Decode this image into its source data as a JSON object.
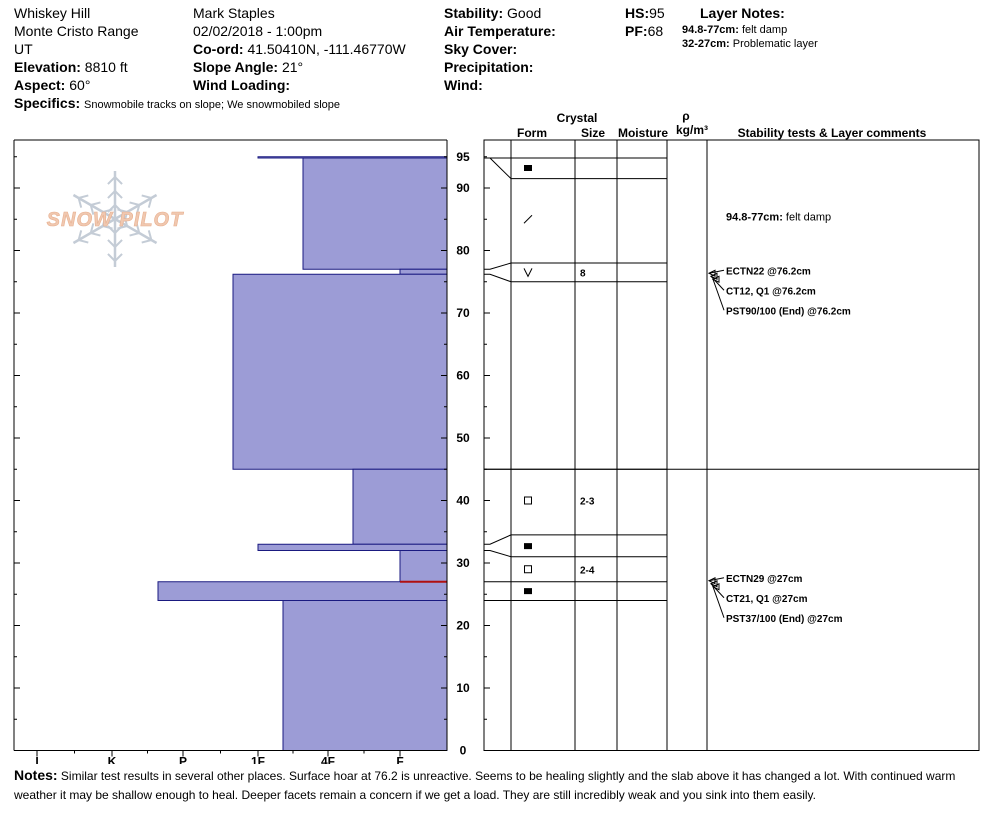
{
  "header": {
    "location": "Whiskey Hill",
    "range": "Monte Cristo Range",
    "state": "UT",
    "elevation_label": "Elevation:",
    "elevation_value": "8810 ft",
    "aspect_label": "Aspect:",
    "aspect_value": "60°",
    "specifics_label": "Specifics:",
    "specifics_value": "Snowmobile tracks on slope; We snowmobiled slope",
    "observer": "Mark Staples",
    "datetime": "02/02/2018 - 1:00pm",
    "coord_label": "Co-ord:",
    "coord_value": "41.50410N, -111.46770W",
    "slope_label": "Slope Angle:",
    "slope_value": "21°",
    "wind_loading_label": "Wind Loading:",
    "wind_loading_value": "",
    "stability_label": "Stability:",
    "stability_value": "Good",
    "air_temp_label": "Air Temperature:",
    "air_temp_value": "",
    "sky_cover_label": "Sky Cover:",
    "sky_cover_value": "",
    "precip_label": "Precipitation:",
    "precip_value": "",
    "wind_label": "Wind:",
    "wind_value": "",
    "hs_label": "HS:",
    "hs_value": "95",
    "pf_label": "PF:",
    "pf_value": "68",
    "layer_notes_label": "Layer Notes:",
    "layer_notes": [
      {
        "range": "94.8-77cm:",
        "text": "felt damp"
      },
      {
        "range": "32-27cm:",
        "text": "Problematic layer"
      }
    ]
  },
  "logo_text": "SNOW PILOT",
  "columns": {
    "crystal": "Crystal",
    "form": "Form",
    "size": "Size",
    "moisture": "Moisture",
    "rho": "ρ",
    "density_unit": "kg/m³",
    "comments": "Stability tests & Layer comments"
  },
  "notes_label": "Notes:",
  "notes_text": "Similar test results in several other places. Surface hoar at 76.2 is unreactive. Seems to be healing slightly and the slab above it has changed a lot. With continued warm weather it may be shallow enough to heal. Deeper facets remain a concern if we get a load. They are still incredibly weak and you sink into them easily.",
  "colors": {
    "layer_fill": "#9c9cd6",
    "layer_stroke": "#1a1a80",
    "weak_layer_line": "#b01010",
    "logo": "#f0c8b0",
    "snowflake": "#c4ccd6"
  },
  "chart_data": {
    "type": "bar",
    "y_axis": {
      "label": "",
      "min": 0,
      "max": 95,
      "ticks": [
        0,
        10,
        20,
        30,
        40,
        50,
        60,
        70,
        80,
        90,
        95
      ]
    },
    "hardness_scale": [
      "I",
      "K",
      "P",
      "1F",
      "4F",
      "F"
    ],
    "hardness_profile": [
      {
        "bottom": 94.8,
        "top": 95,
        "hardness": "1F"
      },
      {
        "bottom": 77,
        "top": 94.8,
        "hardness": "4F+"
      },
      {
        "bottom": 76.2,
        "top": 77,
        "hardness": "F"
      },
      {
        "bottom": 45,
        "top": 76.2,
        "hardness": "1F+"
      },
      {
        "bottom": 33,
        "top": 45,
        "hardness": "4F-"
      },
      {
        "bottom": 32,
        "top": 33,
        "hardness": "1F"
      },
      {
        "bottom": 27,
        "top": 32,
        "hardness": "F"
      },
      {
        "bottom": 24,
        "top": 27,
        "hardness": "P+"
      },
      {
        "bottom": 0,
        "top": 24,
        "hardness": "1F-"
      }
    ],
    "weak_layer_depth": 27,
    "layer_boundaries": [
      95,
      94.8,
      77,
      76.2,
      45,
      33,
      32,
      27,
      24
    ],
    "crystal_layers": [
      {
        "top": 94.8,
        "bottom": 91.5,
        "center": 93.2,
        "form": "rounded",
        "size": ""
      },
      {
        "top": 91.5,
        "bottom": 78,
        "center": 85,
        "form": "precip-particle",
        "size": ""
      },
      {
        "top": 78,
        "bottom": 75,
        "center": 76.5,
        "form": "surface-hoar",
        "size": "8"
      },
      {
        "top": 45,
        "bottom": 34.5,
        "center": 40,
        "form": "faceted",
        "size": "2-3"
      },
      {
        "top": 34.5,
        "bottom": 31,
        "center": 32.7,
        "form": "rounded",
        "size": ""
      },
      {
        "top": 31,
        "bottom": 27,
        "center": 29,
        "form": "faceted",
        "size": "2-4"
      },
      {
        "top": 27,
        "bottom": 24,
        "center": 25.5,
        "form": "rounded",
        "size": ""
      }
    ],
    "layer_comments": [
      {
        "depth": 84,
        "range": "94.8-77cm:",
        "text": "felt damp"
      }
    ],
    "stability_tests": [
      {
        "depth": 76.2,
        "results": [
          "ECTN22 @76.2cm",
          "CT12, Q1 @76.2cm",
          "PST90/100 (End) @76.2cm"
        ]
      },
      {
        "depth": 27,
        "results": [
          "ECTN29 @27cm",
          "CT21, Q1 @27cm",
          "PST37/100 (End) @27cm"
        ]
      }
    ]
  }
}
